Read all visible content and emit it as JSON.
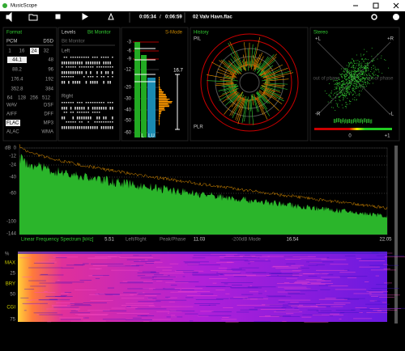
{
  "window": {
    "title": "MusicScope"
  },
  "toolbar": {
    "position": "0:05:34",
    "separator": "/",
    "duration": "0:06:59",
    "track": "02 Valv Havn.flac"
  },
  "format": {
    "title": "Format",
    "header": [
      "PCM",
      "DSD"
    ],
    "bit_depths": [
      "1",
      "16",
      "24",
      "32"
    ],
    "rates": [
      [
        "44.1",
        "48"
      ],
      [
        "88.2",
        "96"
      ],
      [
        "176.4",
        "192"
      ],
      [
        "352.8",
        "384"
      ]
    ],
    "dsd_rates": [
      "64",
      "128",
      "256",
      "512"
    ],
    "containers": [
      [
        "WAV",
        "DSF"
      ],
      [
        "AIFF",
        "DFF"
      ],
      [
        "FLAC",
        "MP3"
      ],
      [
        "ALAC",
        "WMA"
      ]
    ]
  },
  "levels": {
    "title": "Levels",
    "mode": "Bit Monitor",
    "subtitle": "Bit Monitor",
    "left": "Left",
    "right": "Right"
  },
  "meter": {
    "scale": [
      "-3",
      "-6",
      "-9",
      "-12",
      "-20",
      "-30",
      "-40",
      "-50",
      "-60"
    ],
    "mode": "S-Mode",
    "reading": "16.7",
    "channels": [
      "L",
      "LU"
    ]
  },
  "history": {
    "title": "History",
    "top": "PIL",
    "bottom": "PLR"
  },
  "stereo": {
    "title": "Stereo",
    "corners": [
      "+L",
      "+R",
      "-R",
      "-L"
    ],
    "phase_left": "out of phase",
    "phase_right": "out of phase",
    "scale": [
      "0",
      "+1"
    ]
  },
  "spectrum": {
    "unit": "dB",
    "yticks": [
      "0",
      "-12",
      "-24",
      "-40",
      "-60",
      "-100",
      "-144"
    ],
    "title": "Linear Frequency Spectrum [kHz]",
    "xticks": [
      "5.51",
      "11.03",
      "16.54",
      "22.05"
    ],
    "modes": [
      "Left/Right",
      "Peak/Phase",
      "-200dB Mode"
    ]
  },
  "spectrogram": {
    "unit": "%",
    "ticks": [
      "MAX",
      "25",
      "BRY",
      "50",
      "CGI",
      "75"
    ]
  }
}
